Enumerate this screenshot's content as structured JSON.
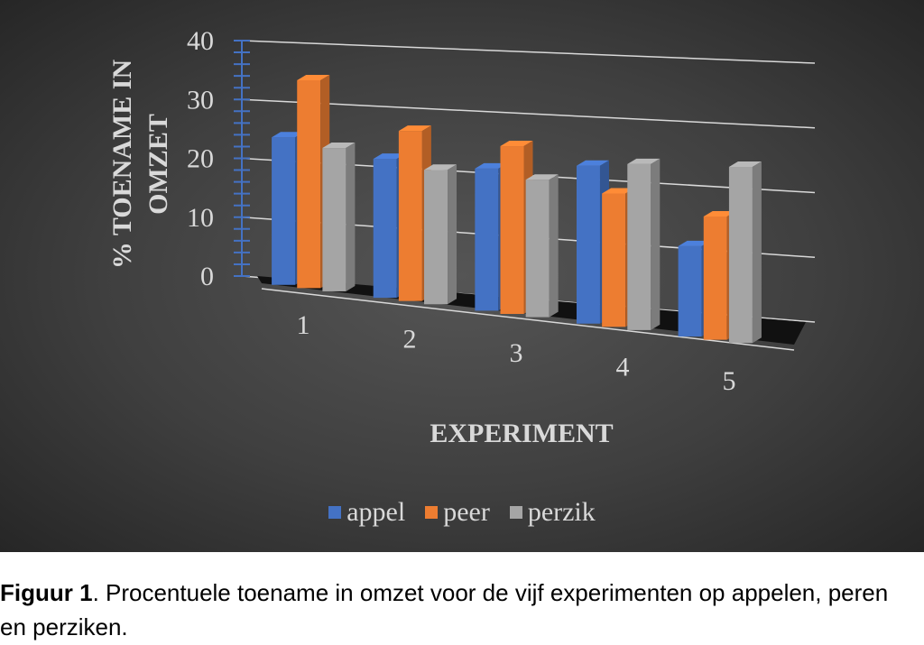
{
  "chart_data": {
    "type": "bar",
    "categories": [
      "1",
      "2",
      "3",
      "4",
      "5"
    ],
    "series": [
      {
        "name": "appel",
        "values": [
          25,
          23,
          23,
          25,
          14
        ],
        "color": "#4472C4"
      },
      {
        "name": "peer",
        "values": [
          35,
          28,
          27,
          21,
          19
        ],
        "color": "#ED7D31"
      },
      {
        "name": "perzik",
        "values": [
          24,
          22,
          22,
          26,
          27
        ],
        "color": "#A5A5A5"
      }
    ],
    "xlabel": "EXPERIMENT",
    "ylabel": "% TOENAME IN OMZET",
    "ylabel_lines": [
      "% TOENAME IN",
      "OMZET"
    ],
    "ylim": [
      0,
      40
    ],
    "yticks": [
      0,
      10,
      20,
      30,
      40
    ],
    "legend_position": "bottom",
    "three_d": true,
    "grid": true
  },
  "caption": {
    "label": "Figuur 1",
    "text": ". Procentuele toename in omzet voor de vijf experimenten op appelen, peren en perziken."
  }
}
